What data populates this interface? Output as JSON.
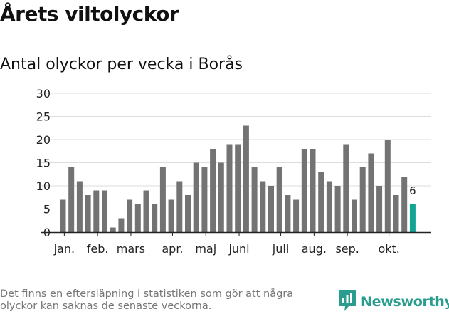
{
  "title": "Årets viltolyckor",
  "subtitle": "Antal olyckor per vecka i Borås",
  "footnote": "Det finns en eftersläpning i statistiken som gör att några olyckor kan saknas de senaste veckorna.",
  "brand": {
    "name": "Newsworthy",
    "logo_icon": "newsworthy-logo-icon"
  },
  "colors": {
    "bar": "#737373",
    "highlight": "#13a593",
    "grid": "#dddddd",
    "axis": "#222222",
    "text": "#222222"
  },
  "chart_data": {
    "type": "bar",
    "values": [
      7,
      14,
      11,
      8,
      9,
      9,
      1,
      3,
      7,
      6,
      9,
      6,
      14,
      7,
      11,
      8,
      15,
      14,
      18,
      15,
      19,
      19,
      23,
      14,
      11,
      10,
      14,
      8,
      7,
      18,
      18,
      13,
      11,
      10,
      19,
      7,
      14,
      17,
      10,
      20,
      8,
      12,
      6
    ],
    "highlight_last": true,
    "last_value_label": "6",
    "ylim": [
      0,
      30
    ],
    "yticks": [
      0,
      5,
      10,
      15,
      20,
      25,
      30
    ],
    "month_ticks": [
      {
        "label": "jan.",
        "bar_index": 0.5
      },
      {
        "label": "feb.",
        "bar_index": 4.5
      },
      {
        "label": "mars",
        "bar_index": 8.5
      },
      {
        "label": "apr.",
        "bar_index": 13.5
      },
      {
        "label": "maj",
        "bar_index": 17.5
      },
      {
        "label": "juni",
        "bar_index": 21.5
      },
      {
        "label": "juli",
        "bar_index": 26.5
      },
      {
        "label": "aug.",
        "bar_index": 30.5
      },
      {
        "label": "sep.",
        "bar_index": 34.5
      },
      {
        "label": "okt.",
        "bar_index": 39.5
      }
    ],
    "grid": true,
    "legend": "none"
  }
}
